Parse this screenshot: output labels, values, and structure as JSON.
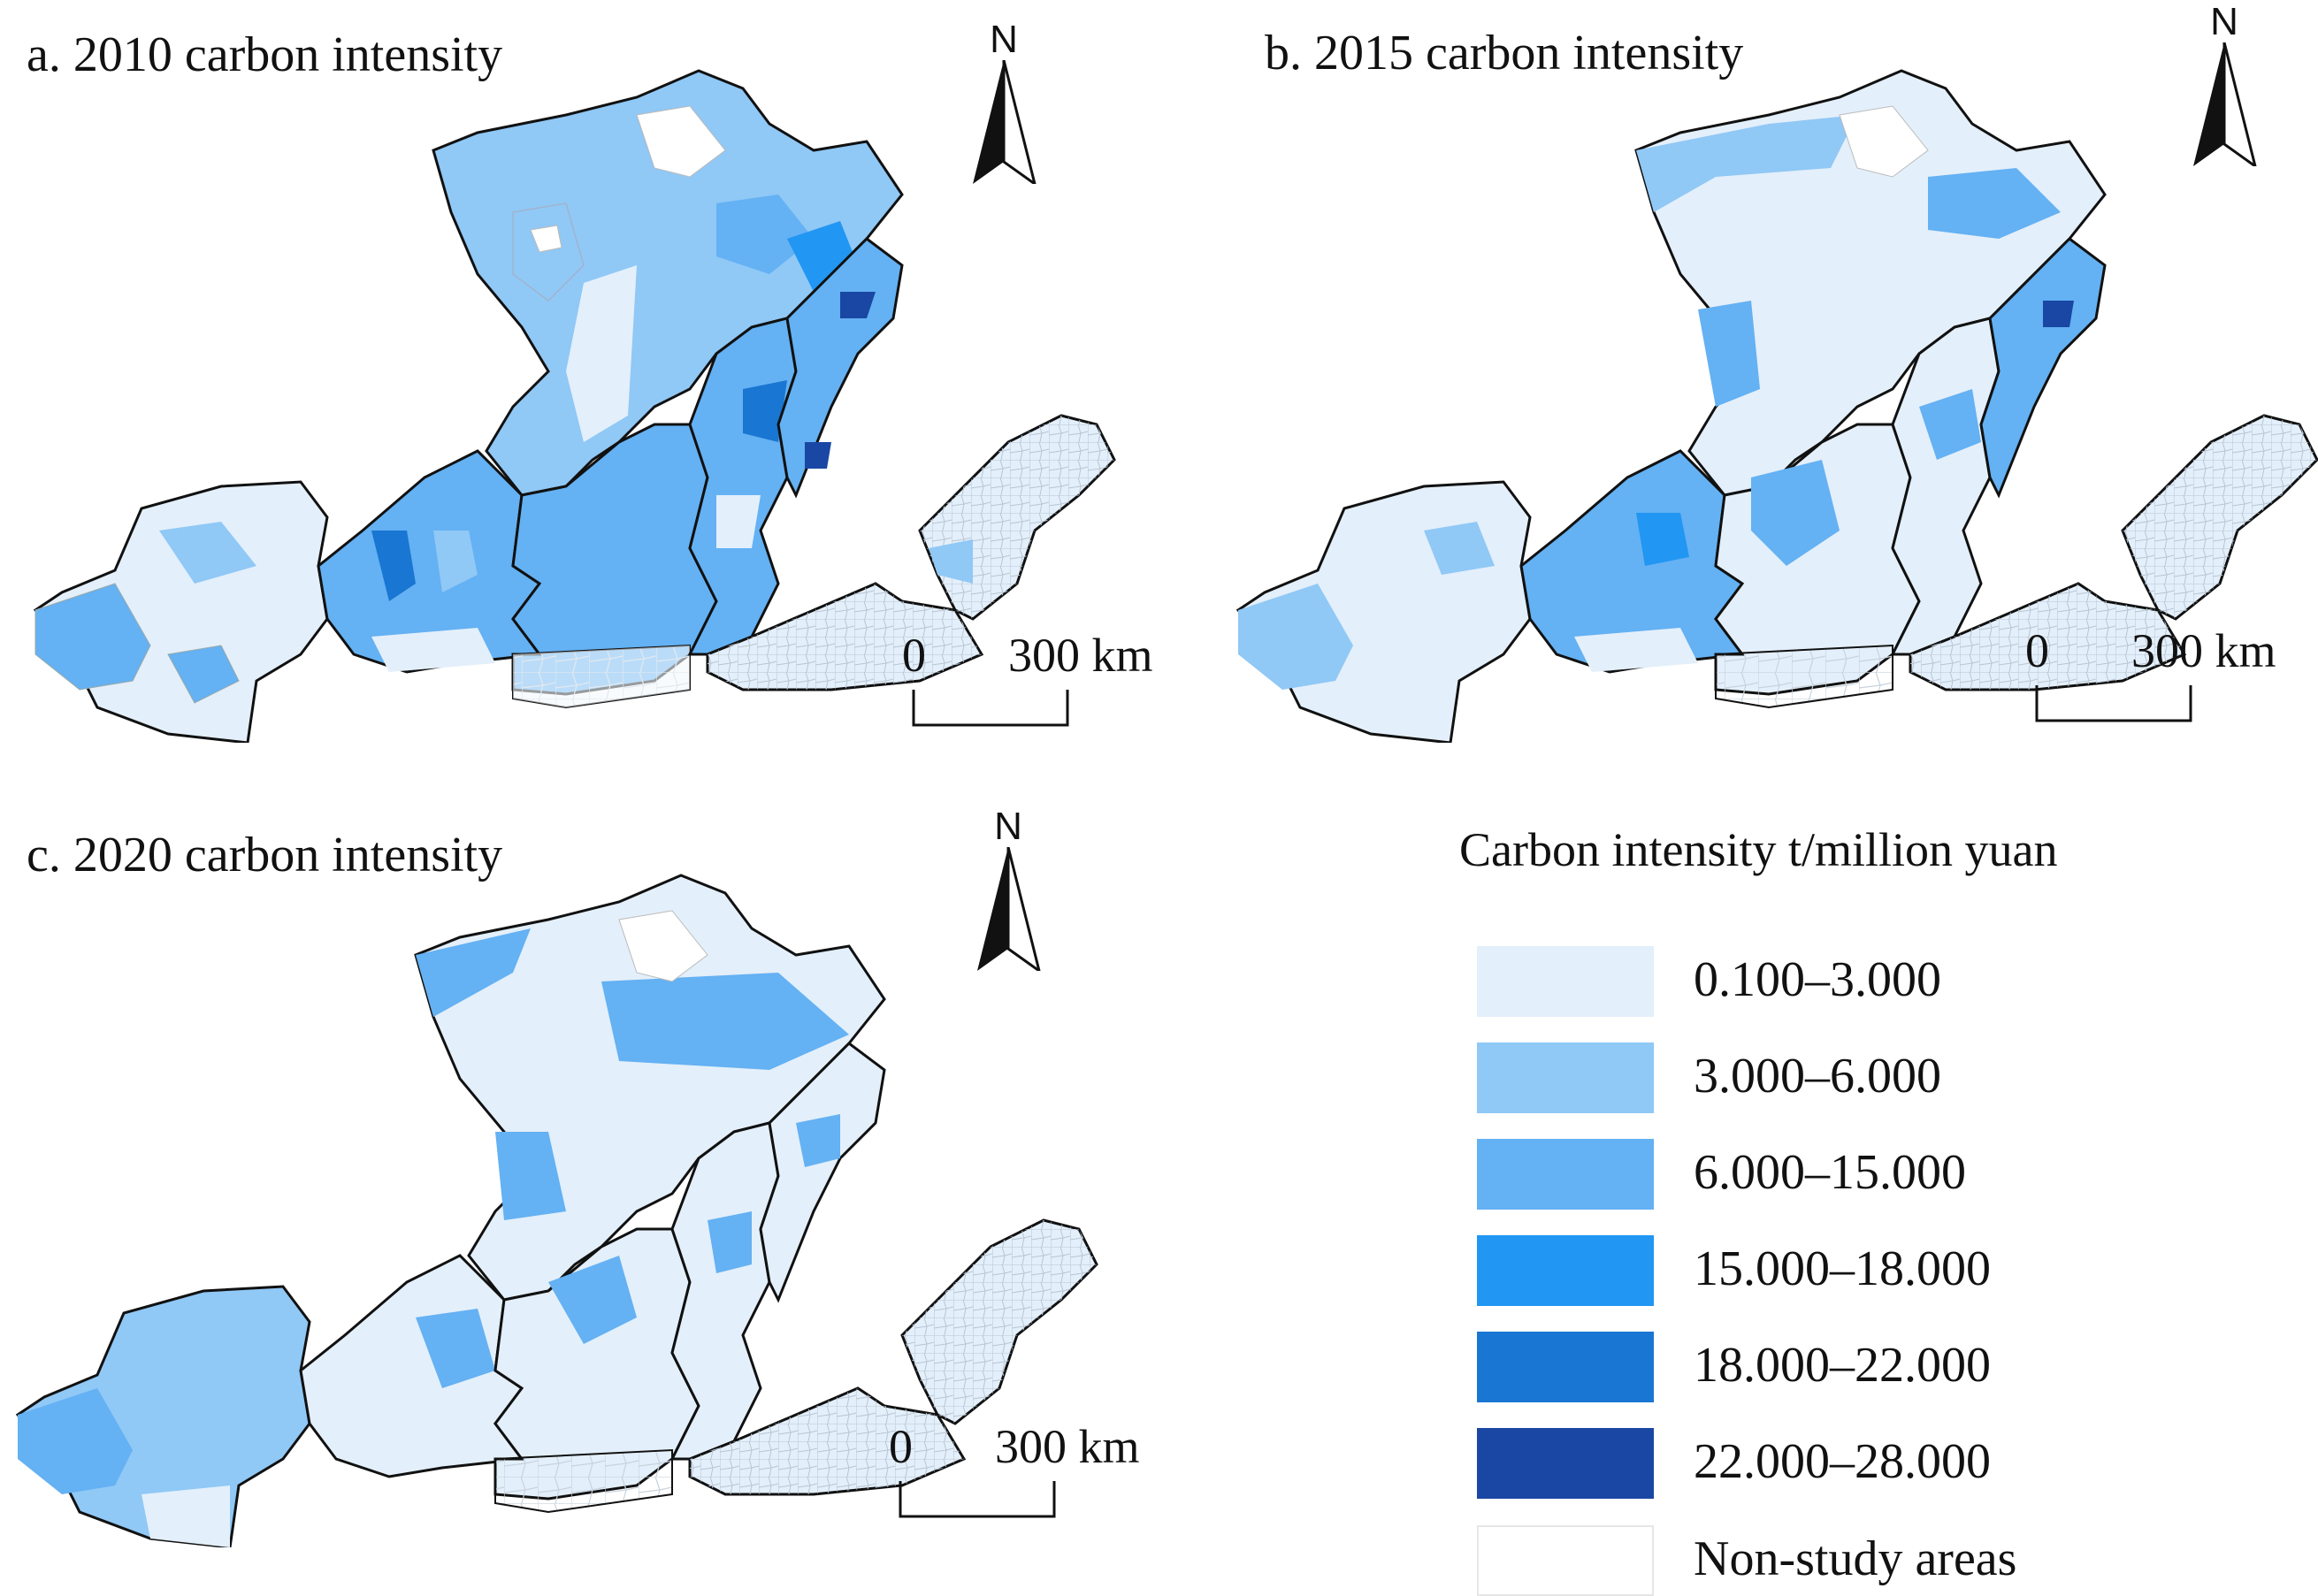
{
  "panels": [
    {
      "id": "a",
      "title": "a. 2010 carbon intensity"
    },
    {
      "id": "b",
      "title": "b. 2015 carbon intensity"
    },
    {
      "id": "c",
      "title": "c. 2020 carbon intensity"
    }
  ],
  "north_label": "N",
  "scale": {
    "zero": "0",
    "max": "300 km"
  },
  "legend": {
    "title": "Carbon intensity t/million yuan",
    "classes": [
      {
        "label": "0.100–3.000",
        "color": "#e3effa"
      },
      {
        "label": "3.000–6.000",
        "color": "#90c8f6"
      },
      {
        "label": "6.000–15.000",
        "color": "#64b1f3"
      },
      {
        "label": "15.000–18.000",
        "color": "#2196f3"
      },
      {
        "label": "18.000–22.000",
        "color": "#1976d2"
      },
      {
        "label": "22.000–28.000",
        "color": "#1a47a3"
      },
      {
        "label": "Non-study areas",
        "color": "#ffffff"
      }
    ]
  }
}
